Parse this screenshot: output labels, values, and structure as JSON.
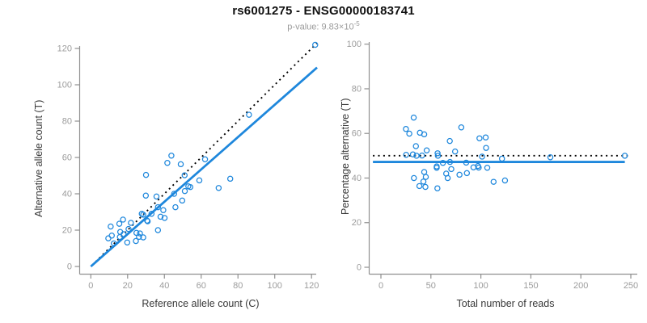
{
  "figure": {
    "title": "rs6001275 - ENSG00000183741",
    "subtitle_base": "p-value: 9.83×10",
    "subtitle_exponent": "-5",
    "colors": {
      "accent_blue": "#1e87dc",
      "dotted_black": "#000000",
      "axis_gray": "#909090",
      "tick_label_gray": "#9c9c9c",
      "axis_title_color": "#383838"
    }
  },
  "chart_data": [
    {
      "type": "scatter",
      "title": "",
      "xlabel": "Reference allele count (C)",
      "ylabel": "Alternative allele count (T)",
      "xlim": [
        0,
        120
      ],
      "ylim": [
        0,
        120
      ],
      "xticks": [
        0,
        20,
        40,
        60,
        80,
        100,
        120
      ],
      "yticks": [
        0,
        20,
        40,
        60,
        80,
        100,
        120
      ],
      "grid": false,
      "legend": "none",
      "points": [
        [
          9.5,
          15.5
        ],
        [
          10.8,
          22
        ],
        [
          11.4,
          17
        ],
        [
          12.5,
          12.7
        ],
        [
          15.8,
          16.2
        ],
        [
          15.5,
          23.5
        ],
        [
          16,
          19
        ],
        [
          17.5,
          25.8
        ],
        [
          17.8,
          17.8
        ],
        [
          19.8,
          13.2
        ],
        [
          20.5,
          20.6
        ],
        [
          21.8,
          24
        ],
        [
          24.5,
          14
        ],
        [
          24.8,
          18.5
        ],
        [
          26.2,
          16.3
        ],
        [
          26.7,
          18.2
        ],
        [
          27.7,
          29
        ],
        [
          28.5,
          28.5
        ],
        [
          28.5,
          16
        ],
        [
          29.9,
          39
        ],
        [
          30,
          50.4
        ],
        [
          30.6,
          25.2
        ],
        [
          30.9,
          24.9
        ],
        [
          33,
          29
        ],
        [
          35.7,
          38.5
        ],
        [
          36.5,
          32.6
        ],
        [
          36.5,
          20
        ],
        [
          37.9,
          27.4
        ],
        [
          39.4,
          31
        ],
        [
          40.1,
          26.7
        ],
        [
          41.6,
          57
        ],
        [
          43.8,
          61
        ],
        [
          45.3,
          40
        ],
        [
          46,
          32.6
        ],
        [
          48.9,
          56.3
        ],
        [
          49.7,
          36.3
        ],
        [
          51,
          50.2
        ],
        [
          51.1,
          41.5
        ],
        [
          53,
          44.1
        ],
        [
          54.1,
          43.7
        ],
        [
          59,
          47.4
        ],
        [
          62.1,
          59
        ],
        [
          69.5,
          43.2
        ],
        [
          75.8,
          48.3
        ],
        [
          86,
          83.5
        ],
        [
          122,
          122
        ]
      ],
      "lines": [
        {
          "name": "identity-line",
          "style": "dotted",
          "color": "black",
          "x1": 0.5,
          "y1": 0.5,
          "x2": 123,
          "y2": 123
        },
        {
          "name": "regression-line",
          "style": "solid",
          "color": "blue",
          "x1": 0,
          "y1": 0,
          "x2": 123,
          "y2": 109.5
        }
      ]
    },
    {
      "type": "scatter",
      "title": "",
      "xlabel": "Total number of reads",
      "ylabel": "Percentage alternative (T)",
      "xlim": [
        0,
        250
      ],
      "ylim": [
        0,
        100
      ],
      "xticks": [
        0,
        50,
        100,
        150,
        200,
        250
      ],
      "yticks": [
        0,
        20,
        40,
        60,
        80,
        100
      ],
      "grid": false,
      "legend": "none",
      "points": [
        [
          25,
          62
        ],
        [
          32.8,
          67.1
        ],
        [
          28.4,
          59.9
        ],
        [
          25.2,
          50.4
        ],
        [
          32,
          50.6
        ],
        [
          39,
          60.3
        ],
        [
          35,
          54.3
        ],
        [
          43.3,
          59.6
        ],
        [
          35.6,
          50
        ],
        [
          33,
          40
        ],
        [
          41.1,
          50.1
        ],
        [
          45.8,
          52.4
        ],
        [
          38.5,
          36.4
        ],
        [
          43.3,
          42.7
        ],
        [
          42.5,
          38.4
        ],
        [
          44.9,
          40.5
        ],
        [
          56.7,
          51.1
        ],
        [
          57,
          50
        ],
        [
          44.5,
          36
        ],
        [
          68.9,
          56.6
        ],
        [
          80.4,
          62.7
        ],
        [
          55.8,
          45.2
        ],
        [
          55.8,
          44.6
        ],
        [
          62,
          46.8
        ],
        [
          74.2,
          51.9
        ],
        [
          69.1,
          47.2
        ],
        [
          56.5,
          35.4
        ],
        [
          65.3,
          42
        ],
        [
          70.4,
          44
        ],
        [
          66.8,
          40
        ],
        [
          98.6,
          57.8
        ],
        [
          104.8,
          58.2
        ],
        [
          85.3,
          46.9
        ],
        [
          78.6,
          41.5
        ],
        [
          105.2,
          53.5
        ],
        [
          86,
          42.2
        ],
        [
          101.2,
          49.6
        ],
        [
          92.6,
          44.8
        ],
        [
          97.1,
          45.4
        ],
        [
          97.8,
          44.7
        ],
        [
          106.4,
          44.6
        ],
        [
          121.1,
          48.7
        ],
        [
          112.7,
          38.3
        ],
        [
          124.1,
          38.9
        ],
        [
          169.5,
          49.3
        ],
        [
          244,
          50
        ]
      ],
      "lines": [
        {
          "name": "fifty-percent-line",
          "style": "dotted",
          "color": "black",
          "x1": -8,
          "y1": 50,
          "x2": 247,
          "y2": 50
        },
        {
          "name": "mean-percentage-line",
          "style": "solid",
          "color": "blue",
          "x1": -8,
          "y1": 47.2,
          "x2": 244,
          "y2": 47.2
        }
      ]
    }
  ]
}
